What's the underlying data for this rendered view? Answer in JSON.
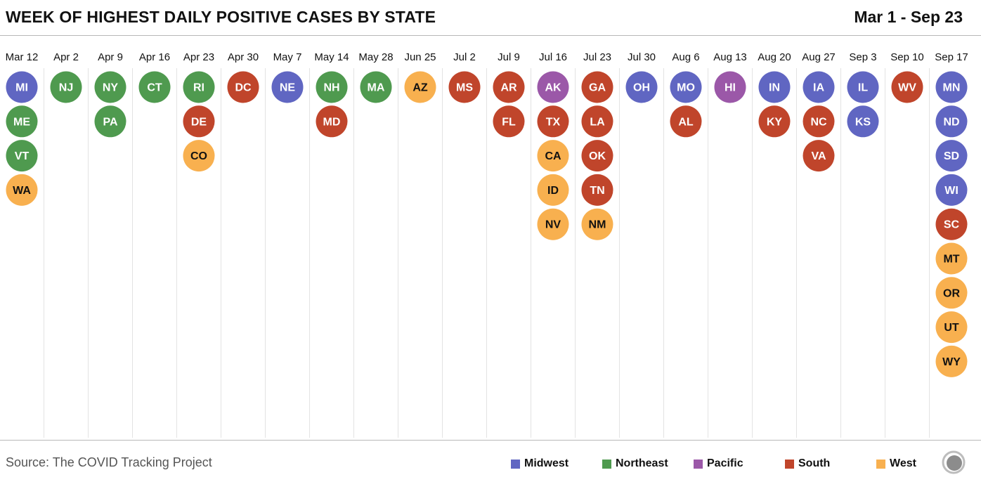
{
  "header": {
    "title": "WEEK OF HIGHEST DAILY POSITIVE CASES BY STATE",
    "date_range": "Mar 1 - Sep 23"
  },
  "footer": {
    "source": "Source: The COVID Tracking Project",
    "logo_icon": "covid-tracking-project-logo-icon"
  },
  "colors": {
    "Midwest": "#6066c2",
    "Northeast": "#4f9a4f",
    "Pacific": "#9b58a8",
    "South": "#c0452b",
    "West": "#f8b04f"
  },
  "chart_data": {
    "type": "table",
    "legend": {
      "placement": "bottom-right",
      "entries": [
        "Midwest",
        "Northeast",
        "Pacific",
        "South",
        "West"
      ]
    },
    "weeks": [
      {
        "label": "Mar 12",
        "states": [
          {
            "code": "MI",
            "region": "Midwest"
          },
          {
            "code": "ME",
            "region": "Northeast"
          },
          {
            "code": "VT",
            "region": "Northeast"
          },
          {
            "code": "WA",
            "region": "West"
          }
        ]
      },
      {
        "label": "Apr 2",
        "states": [
          {
            "code": "NJ",
            "region": "Northeast"
          }
        ]
      },
      {
        "label": "Apr 9",
        "states": [
          {
            "code": "NY",
            "region": "Northeast"
          },
          {
            "code": "PA",
            "region": "Northeast"
          }
        ]
      },
      {
        "label": "Apr 16",
        "states": [
          {
            "code": "CT",
            "region": "Northeast"
          }
        ]
      },
      {
        "label": "Apr 23",
        "states": [
          {
            "code": "RI",
            "region": "Northeast"
          },
          {
            "code": "DE",
            "region": "South"
          },
          {
            "code": "CO",
            "region": "West"
          }
        ]
      },
      {
        "label": "Apr 30",
        "states": [
          {
            "code": "DC",
            "region": "South"
          }
        ]
      },
      {
        "label": "May 7",
        "states": [
          {
            "code": "NE",
            "region": "Midwest"
          }
        ]
      },
      {
        "label": "May 14",
        "states": [
          {
            "code": "NH",
            "region": "Northeast"
          },
          {
            "code": "MD",
            "region": "South"
          }
        ]
      },
      {
        "label": "May 28",
        "states": [
          {
            "code": "MA",
            "region": "Northeast"
          }
        ]
      },
      {
        "label": "Jun 25",
        "states": [
          {
            "code": "AZ",
            "region": "West"
          }
        ]
      },
      {
        "label": "Jul 2",
        "states": [
          {
            "code": "MS",
            "region": "South"
          }
        ]
      },
      {
        "label": "Jul 9",
        "states": [
          {
            "code": "AR",
            "region": "South"
          },
          {
            "code": "FL",
            "region": "South"
          }
        ]
      },
      {
        "label": "Jul 16",
        "states": [
          {
            "code": "AK",
            "region": "Pacific"
          },
          {
            "code": "TX",
            "region": "South"
          },
          {
            "code": "CA",
            "region": "West"
          },
          {
            "code": "ID",
            "region": "West"
          },
          {
            "code": "NV",
            "region": "West"
          }
        ]
      },
      {
        "label": "Jul 23",
        "states": [
          {
            "code": "GA",
            "region": "South"
          },
          {
            "code": "LA",
            "region": "South"
          },
          {
            "code": "OK",
            "region": "South"
          },
          {
            "code": "TN",
            "region": "South"
          },
          {
            "code": "NM",
            "region": "West"
          }
        ]
      },
      {
        "label": "Jul 30",
        "states": [
          {
            "code": "OH",
            "region": "Midwest"
          }
        ]
      },
      {
        "label": "Aug 6",
        "states": [
          {
            "code": "MO",
            "region": "Midwest"
          },
          {
            "code": "AL",
            "region": "South"
          }
        ]
      },
      {
        "label": "Aug 13",
        "states": [
          {
            "code": "HI",
            "region": "Pacific"
          }
        ]
      },
      {
        "label": "Aug 20",
        "states": [
          {
            "code": "IN",
            "region": "Midwest"
          },
          {
            "code": "KY",
            "region": "South"
          }
        ]
      },
      {
        "label": "Aug 27",
        "states": [
          {
            "code": "IA",
            "region": "Midwest"
          },
          {
            "code": "NC",
            "region": "South"
          },
          {
            "code": "VA",
            "region": "South"
          }
        ]
      },
      {
        "label": "Sep 3",
        "states": [
          {
            "code": "IL",
            "region": "Midwest"
          },
          {
            "code": "KS",
            "region": "Midwest"
          }
        ]
      },
      {
        "label": "Sep 10",
        "states": [
          {
            "code": "WV",
            "region": "South"
          }
        ]
      },
      {
        "label": "Sep 17",
        "states": [
          {
            "code": "MN",
            "region": "Midwest"
          },
          {
            "code": "ND",
            "region": "Midwest"
          },
          {
            "code": "SD",
            "region": "Midwest"
          },
          {
            "code": "WI",
            "region": "Midwest"
          },
          {
            "code": "SC",
            "region": "South"
          },
          {
            "code": "MT",
            "region": "West"
          },
          {
            "code": "OR",
            "region": "West"
          },
          {
            "code": "UT",
            "region": "West"
          },
          {
            "code": "WY",
            "region": "West"
          }
        ]
      }
    ]
  }
}
